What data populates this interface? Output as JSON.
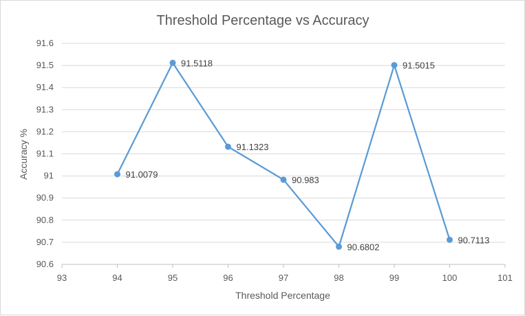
{
  "chart_data": {
    "type": "line",
    "title": "Threshold Percentage vs Accuracy",
    "xlabel": "Threshold Percentage",
    "ylabel": "Accuracy %",
    "xlim": [
      93,
      101
    ],
    "ylim": [
      90.6,
      91.6
    ],
    "x_ticks": [
      "93",
      "94",
      "95",
      "96",
      "97",
      "98",
      "99",
      "100",
      "101"
    ],
    "y_ticks": [
      "90.6",
      "90.7",
      "90.8",
      "90.9",
      "91",
      "91.1",
      "91.2",
      "91.3",
      "91.4",
      "91.5",
      "91.6"
    ],
    "grid": "horizontal",
    "series": [
      {
        "color": "#5b9bd5",
        "x": [
          94,
          95,
          96,
          97,
          98,
          99,
          100
        ],
        "y": [
          91.0079,
          91.5118,
          91.1323,
          90.983,
          90.6802,
          91.5015,
          90.7113
        ],
        "labels": [
          "91.0079",
          "91.5118",
          "91.1323",
          "90.983",
          "90.6802",
          "91.5015",
          "90.7113"
        ]
      }
    ]
  }
}
